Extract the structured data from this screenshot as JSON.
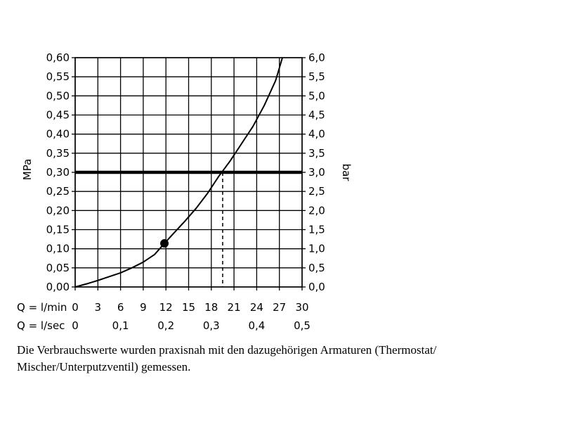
{
  "chart_data": {
    "type": "line",
    "left_axis": {
      "label": "MPa",
      "range": [
        0,
        0.6
      ],
      "ticks": [
        "0,00",
        "0,05",
        "0,10",
        "0,15",
        "0,20",
        "0,25",
        "0,30",
        "0,35",
        "0,40",
        "0,45",
        "0,50",
        "0,55",
        "0,60"
      ]
    },
    "right_axis": {
      "label": "bar",
      "range": [
        0,
        6
      ],
      "ticks": [
        "0,0",
        "0,5",
        "1,0",
        "1,5",
        "2,0",
        "2,5",
        "3,0",
        "3,5",
        "4,0",
        "4,5",
        "5,0",
        "5,5",
        "6,0"
      ]
    },
    "x_axis_lmin": {
      "label": "Q = l/min",
      "range": [
        0,
        30
      ],
      "ticks": [
        "0",
        "3",
        "6",
        "9",
        "12",
        "15",
        "18",
        "21",
        "24",
        "27",
        "30"
      ]
    },
    "x_axis_lsec": {
      "label": "Q = l/sec",
      "ticks": [
        {
          "value": 0,
          "label": "0"
        },
        {
          "value": 6,
          "label": "0,1"
        },
        {
          "value": 12,
          "label": "0,2"
        },
        {
          "value": 18,
          "label": "0,3"
        },
        {
          "value": 24,
          "label": "0,4"
        },
        {
          "value": 30,
          "label": "0,5"
        }
      ]
    },
    "grid": true,
    "series": [
      {
        "x": [
          0,
          1.5,
          3,
          4.5,
          6,
          7.5,
          9,
          10.5,
          11.8,
          13,
          14.5,
          16,
          17.5,
          19,
          20.5,
          22,
          23.5,
          25,
          26.5,
          27.4
        ],
        "y": [
          0,
          0.008,
          0.017,
          0.027,
          0.037,
          0.05,
          0.065,
          0.085,
          0.114,
          0.14,
          0.172,
          0.206,
          0.245,
          0.29,
          0.33,
          0.375,
          0.42,
          0.475,
          0.54,
          0.6
        ]
      }
    ],
    "marker_point": {
      "x": 11.8,
      "y": 0.114
    },
    "reference_line": {
      "y": 0.3
    },
    "dropline": {
      "x": 19.5,
      "y": 0.3
    }
  },
  "footnote": "Die Verbrauchswerte wurden praxisnah mit den dazugehörigen Armaturen (Thermostat/ Mischer/Unterputzventil) gemessen."
}
